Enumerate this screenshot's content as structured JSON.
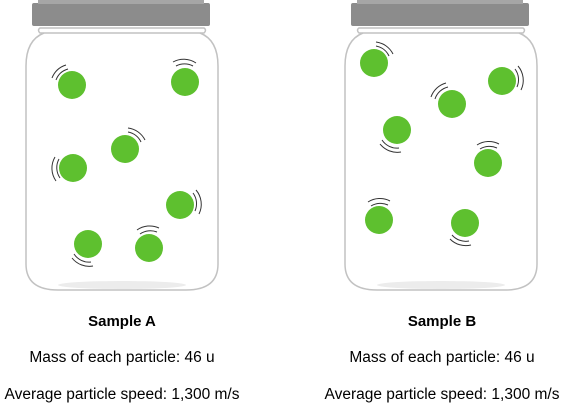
{
  "colors": {
    "particle": "#5ec02f",
    "particle_stroke": "#4aa21f",
    "lid": "#8c8c8c",
    "jar_outline": "#c2c2c2",
    "motion_lines": "#333333",
    "text": "#000000"
  },
  "samples": [
    {
      "title": "Sample A",
      "mass": "Mass of each particle: 46 u",
      "speed": "Average particle speed: 1,300 m/s"
    },
    {
      "title": "Sample B",
      "mass": "Mass of each particle: 46 u",
      "speed": "Average particle speed: 1,300 m/s"
    }
  ]
}
